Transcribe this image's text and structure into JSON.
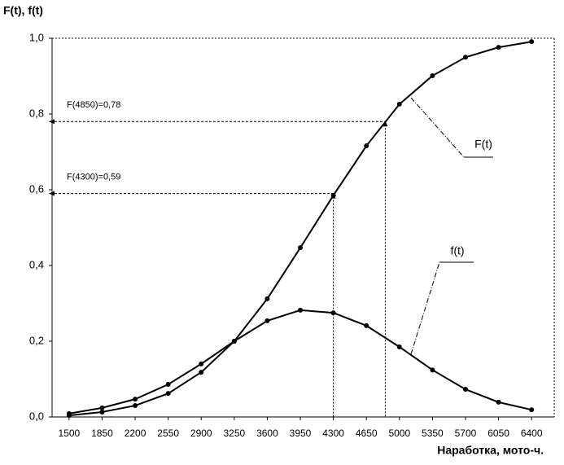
{
  "chart_data": {
    "type": "line",
    "y_label": "F(t), f(t)",
    "x_label": "Наработка, мото-ч.",
    "x": [
      1500,
      1850,
      2200,
      2550,
      2900,
      3250,
      3600,
      3950,
      4300,
      4650,
      5000,
      5350,
      5700,
      6050,
      6400
    ],
    "series": [
      {
        "name": "F(t)",
        "color": "#000000",
        "values": [
          0.004,
          0.013,
          0.03,
          0.062,
          0.118,
          0.2,
          0.312,
          0.447,
          0.585,
          0.716,
          0.826,
          0.901,
          0.95,
          0.976,
          0.991
        ]
      },
      {
        "name": "f(t)",
        "color": "#000000",
        "values": [
          0.009,
          0.024,
          0.047,
          0.086,
          0.14,
          0.2,
          0.254,
          0.282,
          0.275,
          0.241,
          0.185,
          0.124,
          0.073,
          0.039,
          0.019
        ]
      }
    ],
    "xlim": [
      1320,
      6640
    ],
    "xticks": [
      1500,
      1850,
      2200,
      2550,
      2900,
      3250,
      3600,
      3950,
      4300,
      4650,
      5000,
      5350,
      5700,
      6050,
      6400
    ],
    "ylim": [
      0,
      1
    ],
    "yticks": [
      {
        "value": 0,
        "label": "0,0"
      },
      {
        "value": 0.2,
        "label": "0,2"
      },
      {
        "value": 0.4,
        "label": "0,4"
      },
      {
        "value": 0.6,
        "label": "0,6"
      },
      {
        "value": 0.8,
        "label": "0,8"
      },
      {
        "value": 1,
        "label": "1,0"
      }
    ],
    "annotations": [
      {
        "label": "F(4850)=0,78",
        "x": 4850,
        "y": 0.78
      },
      {
        "label": "F(4300)=0,59",
        "x": 4300,
        "y": 0.59
      }
    ]
  }
}
